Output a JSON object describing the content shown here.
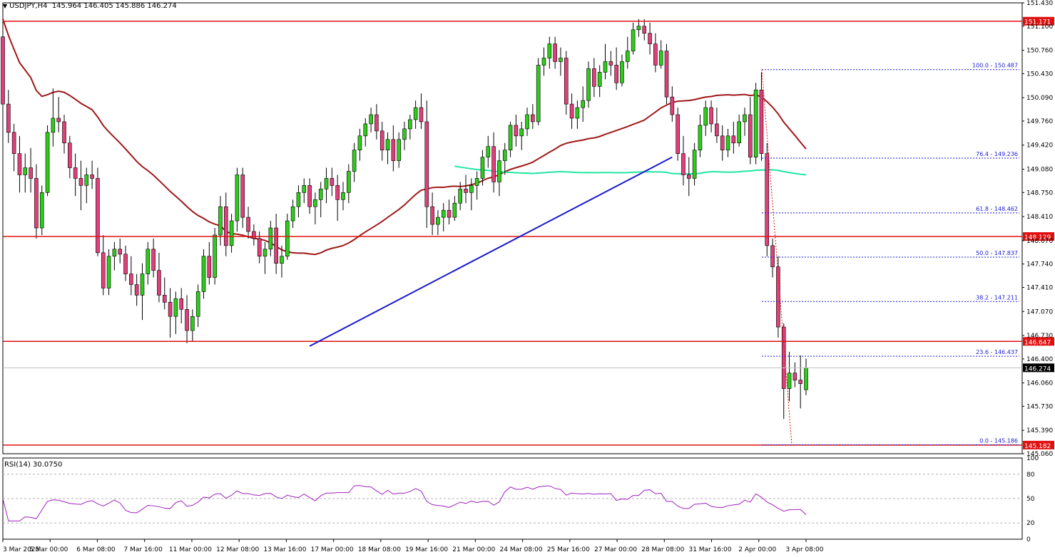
{
  "header": {
    "symbol": "USDJPY,H4",
    "ohlc": "145.964 146.405 145.886 146.274"
  },
  "rsi_label": "RSI(14) 30.0750",
  "colors": {
    "bull": "#2ecc1b",
    "bear": "#e0407a",
    "wick": "#000000",
    "ma_fast": "#a01818",
    "ma_slow": "#22e6a0",
    "trend": "#1a1ad0",
    "hline": "#e01010",
    "fib": "#1a1ad0",
    "rsi": "#a020c0"
  },
  "chart_data": {
    "type": "candlestick",
    "title": "USDJPY,H4",
    "ylim": [
      145.06,
      151.43
    ],
    "y_ticks": [
      "151.430",
      "151.100",
      "150.760",
      "150.430",
      "150.090",
      "149.760",
      "149.420",
      "149.080",
      "148.750",
      "148.410",
      "148.070",
      "147.740",
      "147.410",
      "147.070",
      "146.730",
      "146.400",
      "146.060",
      "145.730",
      "145.390",
      "145.060"
    ],
    "x_ticks": [
      "3 Mar 2025",
      "5 Mar 00:00",
      "6 Mar 08:00",
      "7 Mar 16:00",
      "11 Mar 00:00",
      "12 Mar 08:00",
      "13 Mar 16:00",
      "17 Mar 00:00",
      "18 Mar 08:00",
      "19 Mar 16:00",
      "21 Mar 00:00",
      "24 Mar 08:00",
      "25 Mar 16:00",
      "27 Mar 00:00",
      "28 Mar 08:00",
      "31 Mar 16:00",
      "2 Apr 00:00",
      "3 Apr 08:00"
    ],
    "horizontal_levels": [
      {
        "price": 151.171,
        "label": "151.171"
      },
      {
        "price": 148.129,
        "label": "148.129"
      },
      {
        "price": 146.647,
        "label": "146.647"
      },
      {
        "price": 145.182,
        "label": "145.182"
      }
    ],
    "current_price": {
      "price": 146.274,
      "label": "146.274"
    },
    "fibonacci": [
      {
        "price": 150.487,
        "label": "100.0 - 150.487"
      },
      {
        "price": 149.236,
        "label": "76.4 - 149.236"
      },
      {
        "price": 148.462,
        "label": "61.8 - 148.462"
      },
      {
        "price": 147.837,
        "label": "50.0 - 147.837"
      },
      {
        "price": 147.211,
        "label": "38.2 - 147.211"
      },
      {
        "price": 146.437,
        "label": "23.6 - 146.437"
      },
      {
        "price": 145.186,
        "label": "0.0 - 145.186"
      }
    ],
    "candles_ohlc": [
      [
        150.95,
        151.0,
        149.85,
        150.0
      ],
      [
        150.0,
        150.2,
        149.45,
        149.6
      ],
      [
        149.6,
        149.72,
        149.05,
        149.3
      ],
      [
        149.3,
        149.55,
        148.75,
        149.0
      ],
      [
        149.0,
        149.3,
        148.75,
        149.1
      ],
      [
        149.1,
        149.38,
        148.75,
        148.95
      ],
      [
        148.95,
        149.15,
        148.1,
        148.25
      ],
      [
        148.25,
        148.85,
        148.15,
        148.75
      ],
      [
        148.75,
        149.7,
        148.7,
        149.6
      ],
      [
        149.6,
        150.22,
        149.4,
        149.8
      ],
      [
        149.8,
        150.1,
        149.6,
        149.75
      ],
      [
        149.75,
        149.85,
        149.3,
        149.45
      ],
      [
        149.45,
        149.55,
        148.95,
        149.1
      ],
      [
        149.1,
        149.3,
        148.7,
        148.95
      ],
      [
        148.95,
        149.2,
        148.5,
        148.85
      ],
      [
        148.85,
        149.1,
        148.6,
        149.0
      ],
      [
        149.0,
        149.2,
        148.8,
        148.95
      ],
      [
        148.95,
        149.1,
        147.85,
        147.9
      ],
      [
        147.9,
        148.15,
        147.3,
        147.4
      ],
      [
        147.4,
        147.95,
        147.3,
        147.85
      ],
      [
        147.85,
        148.05,
        147.65,
        147.95
      ],
      [
        147.95,
        148.1,
        147.75,
        147.88
      ],
      [
        147.88,
        148.0,
        147.5,
        147.6
      ],
      [
        147.6,
        147.85,
        147.3,
        147.45
      ],
      [
        147.45,
        147.6,
        147.15,
        147.3
      ],
      [
        147.3,
        147.75,
        146.95,
        147.6
      ],
      [
        147.6,
        148.05,
        147.45,
        147.95
      ],
      [
        147.95,
        148.1,
        147.55,
        147.65
      ],
      [
        147.65,
        147.9,
        147.2,
        147.3
      ],
      [
        147.3,
        147.55,
        147.1,
        147.2
      ],
      [
        147.2,
        147.4,
        146.7,
        147.0
      ],
      [
        147.0,
        147.35,
        146.75,
        147.25
      ],
      [
        147.25,
        147.4,
        146.9,
        147.1
      ],
      [
        147.1,
        147.3,
        146.62,
        146.8
      ],
      [
        146.8,
        147.1,
        146.65,
        147.0
      ],
      [
        147.0,
        147.45,
        146.85,
        147.35
      ],
      [
        147.35,
        147.95,
        147.25,
        147.85
      ],
      [
        147.85,
        148.05,
        147.45,
        147.55
      ],
      [
        147.55,
        148.25,
        147.45,
        148.15
      ],
      [
        148.15,
        148.7,
        148.0,
        148.55
      ],
      [
        148.55,
        148.75,
        147.85,
        148.0
      ],
      [
        148.0,
        148.45,
        147.9,
        148.35
      ],
      [
        148.35,
        149.1,
        148.2,
        149.0
      ],
      [
        149.0,
        149.1,
        148.25,
        148.4
      ],
      [
        148.4,
        148.55,
        148.1,
        148.2
      ],
      [
        148.2,
        148.3,
        148.0,
        148.1
      ],
      [
        148.1,
        148.2,
        147.75,
        147.85
      ],
      [
        147.85,
        148.05,
        147.6,
        147.95
      ],
      [
        147.95,
        148.35,
        147.85,
        148.25
      ],
      [
        148.25,
        148.45,
        147.6,
        147.75
      ],
      [
        147.75,
        148.0,
        147.55,
        147.85
      ],
      [
        147.85,
        148.45,
        147.8,
        148.35
      ],
      [
        148.35,
        148.65,
        148.25,
        148.55
      ],
      [
        148.55,
        148.85,
        148.4,
        148.75
      ],
      [
        148.75,
        148.95,
        148.6,
        148.85
      ],
      [
        148.85,
        148.95,
        148.45,
        148.55
      ],
      [
        148.55,
        148.75,
        148.3,
        148.65
      ],
      [
        148.65,
        148.9,
        148.4,
        148.8
      ],
      [
        148.8,
        149.1,
        148.6,
        148.95
      ],
      [
        148.95,
        149.1,
        148.7,
        148.85
      ],
      [
        148.85,
        149.0,
        148.35,
        148.65
      ],
      [
        148.65,
        148.9,
        148.5,
        148.75
      ],
      [
        148.75,
        149.15,
        148.6,
        149.05
      ],
      [
        149.05,
        149.45,
        148.9,
        149.35
      ],
      [
        149.35,
        149.65,
        149.2,
        149.55
      ],
      [
        149.55,
        149.8,
        149.4,
        149.72
      ],
      [
        149.72,
        149.95,
        149.6,
        149.85
      ],
      [
        149.85,
        150.0,
        149.5,
        149.62
      ],
      [
        149.62,
        149.75,
        149.2,
        149.35
      ],
      [
        149.35,
        149.6,
        149.15,
        149.5
      ],
      [
        149.5,
        149.7,
        149.05,
        149.2
      ],
      [
        149.2,
        149.6,
        149.1,
        149.5
      ],
      [
        149.5,
        149.75,
        149.35,
        149.65
      ],
      [
        149.65,
        149.85,
        149.5,
        149.78
      ],
      [
        149.78,
        150.05,
        149.65,
        149.95
      ],
      [
        149.95,
        150.15,
        149.65,
        149.75
      ],
      [
        149.75,
        150.05,
        148.25,
        148.55
      ],
      [
        148.55,
        148.75,
        148.15,
        148.3
      ],
      [
        148.3,
        148.5,
        148.15,
        148.4
      ],
      [
        148.4,
        148.6,
        148.2,
        148.5
      ],
      [
        148.5,
        148.65,
        148.3,
        148.4
      ],
      [
        148.4,
        148.7,
        148.35,
        148.6
      ],
      [
        148.6,
        148.9,
        148.5,
        148.8
      ],
      [
        148.8,
        149.0,
        148.6,
        148.75
      ],
      [
        148.75,
        148.95,
        148.5,
        148.85
      ],
      [
        148.85,
        149.05,
        148.65,
        148.95
      ],
      [
        148.95,
        149.35,
        148.85,
        149.25
      ],
      [
        149.25,
        149.55,
        149.1,
        149.4
      ],
      [
        149.4,
        149.6,
        148.75,
        148.9
      ],
      [
        148.9,
        149.35,
        148.7,
        149.2
      ],
      [
        149.2,
        149.45,
        149.0,
        149.35
      ],
      [
        149.35,
        149.75,
        149.25,
        149.7
      ],
      [
        149.7,
        149.85,
        149.4,
        149.55
      ],
      [
        149.55,
        149.75,
        149.35,
        149.65
      ],
      [
        149.65,
        149.95,
        149.55,
        149.85
      ],
      [
        149.85,
        150.0,
        149.65,
        149.75
      ],
      [
        149.75,
        150.65,
        149.7,
        150.55
      ],
      [
        150.55,
        150.8,
        150.4,
        150.65
      ],
      [
        150.65,
        150.95,
        150.5,
        150.85
      ],
      [
        150.85,
        150.95,
        150.5,
        150.6
      ],
      [
        150.6,
        150.8,
        150.4,
        150.65
      ],
      [
        150.65,
        150.75,
        149.85,
        150.0
      ],
      [
        150.0,
        150.15,
        149.65,
        149.8
      ],
      [
        149.8,
        150.05,
        149.65,
        149.95
      ],
      [
        149.95,
        150.25,
        149.75,
        150.05
      ],
      [
        150.05,
        150.6,
        149.95,
        150.5
      ],
      [
        150.5,
        150.65,
        150.1,
        150.25
      ],
      [
        150.25,
        150.55,
        150.1,
        150.45
      ],
      [
        150.45,
        150.85,
        150.35,
        150.6
      ],
      [
        150.6,
        150.75,
        150.4,
        150.55
      ],
      [
        150.55,
        150.8,
        150.2,
        150.3
      ],
      [
        150.3,
        150.7,
        150.25,
        150.6
      ],
      [
        150.6,
        150.95,
        150.5,
        150.75
      ],
      [
        150.75,
        151.15,
        150.7,
        151.05
      ],
      [
        151.05,
        151.2,
        150.95,
        151.1
      ],
      [
        151.1,
        151.2,
        150.9,
        151.0
      ],
      [
        151.0,
        151.15,
        150.7,
        150.85
      ],
      [
        150.85,
        151.0,
        150.45,
        150.55
      ],
      [
        150.55,
        150.9,
        150.5,
        150.75
      ],
      [
        150.75,
        150.85,
        150.0,
        150.1
      ],
      [
        150.1,
        150.25,
        149.75,
        149.85
      ],
      [
        149.85,
        149.95,
        149.2,
        149.3
      ],
      [
        149.3,
        149.55,
        148.85,
        149.0
      ],
      [
        149.0,
        149.25,
        148.7,
        148.95
      ],
      [
        148.95,
        149.45,
        148.85,
        149.35
      ],
      [
        149.35,
        149.85,
        149.25,
        149.7
      ],
      [
        149.7,
        150.05,
        149.55,
        149.95
      ],
      [
        149.95,
        150.05,
        149.6,
        149.72
      ],
      [
        149.72,
        149.95,
        149.45,
        149.55
      ],
      [
        149.55,
        149.7,
        149.2,
        149.35
      ],
      [
        149.35,
        149.65,
        149.25,
        149.55
      ],
      [
        149.55,
        149.75,
        149.3,
        149.45
      ],
      [
        149.45,
        149.85,
        149.4,
        149.75
      ],
      [
        149.75,
        149.95,
        149.55,
        149.85
      ],
      [
        149.85,
        150.1,
        149.15,
        149.25
      ],
      [
        149.25,
        150.3,
        149.15,
        150.2
      ],
      [
        150.2,
        150.45,
        149.2,
        149.3
      ],
      [
        149.3,
        149.45,
        147.85,
        148.0
      ],
      [
        148.0,
        148.1,
        147.55,
        147.7
      ],
      [
        147.7,
        147.85,
        146.7,
        146.85
      ],
      [
        146.85,
        146.9,
        145.55,
        145.98
      ],
      [
        145.98,
        146.5,
        145.8,
        146.2
      ],
      [
        146.2,
        146.35,
        146.0,
        146.1
      ],
      [
        146.1,
        146.45,
        145.7,
        146.05
      ],
      [
        145.964,
        146.405,
        145.886,
        146.274
      ]
    ],
    "rsi": {
      "name": "RSI(14)",
      "value": 30.075,
      "ylim": [
        0,
        100
      ],
      "levels": [
        80,
        50,
        20
      ],
      "tick_labels": [
        "100",
        "80",
        "50",
        "20",
        "0"
      ]
    }
  }
}
